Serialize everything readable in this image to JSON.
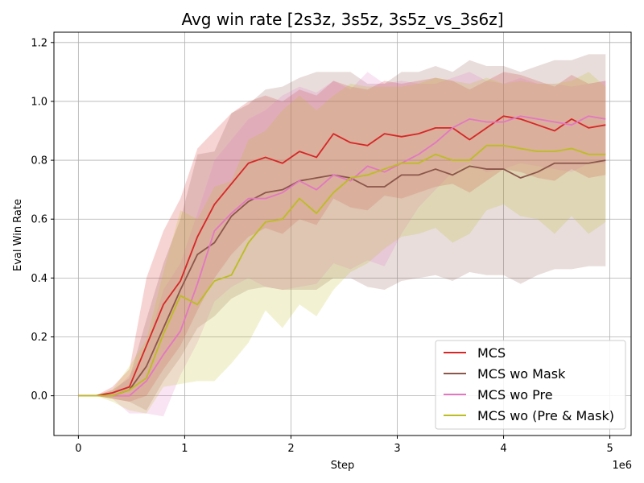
{
  "chart_data": {
    "type": "line",
    "title": "Avg win rate [2s3z, 3s5z, 3s5z_vs_3s6z]",
    "xlabel": "Step",
    "ylabel": "Eval Win Rate",
    "x_offset_label": "1e6",
    "xlim": [
      -0.23,
      5.2
    ],
    "ylim": [
      -0.135,
      1.235
    ],
    "xticks": [
      0,
      1,
      2,
      3,
      4,
      5
    ],
    "xtick_labels": [
      "0",
      "1",
      "2",
      "3",
      "4",
      "5"
    ],
    "yticks": [
      0.0,
      0.2,
      0.4,
      0.6,
      0.8,
      1.0,
      1.2
    ],
    "ytick_labels": [
      "0.0",
      "0.2",
      "0.4",
      "0.6",
      "0.8",
      "1.0",
      "1.2"
    ],
    "grid": true,
    "legend_position": "bottom-right",
    "x": [
      0,
      0.16,
      0.32,
      0.48,
      0.64,
      0.8,
      0.96,
      1.12,
      1.28,
      1.44,
      1.6,
      1.76,
      1.92,
      2.08,
      2.24,
      2.4,
      2.56,
      2.72,
      2.88,
      3.04,
      3.2,
      3.36,
      3.52,
      3.68,
      3.84,
      4.0,
      4.16,
      4.32,
      4.48,
      4.64,
      4.8,
      4.96
    ],
    "series": [
      {
        "name": "MCS",
        "color": "#d62728",
        "values": [
          0.0,
          0.0,
          0.01,
          0.03,
          0.17,
          0.31,
          0.39,
          0.54,
          0.65,
          0.72,
          0.79,
          0.81,
          0.79,
          0.83,
          0.81,
          0.89,
          0.86,
          0.85,
          0.89,
          0.88,
          0.89,
          0.91,
          0.91,
          0.87,
          0.91,
          0.95,
          0.94,
          0.92,
          0.9,
          0.94,
          0.91,
          0.92
        ],
        "lower": [
          0.0,
          0.0,
          -0.01,
          -0.02,
          0.0,
          0.09,
          0.17,
          0.29,
          0.4,
          0.48,
          0.54,
          0.57,
          0.55,
          0.6,
          0.58,
          0.67,
          0.64,
          0.63,
          0.68,
          0.67,
          0.69,
          0.71,
          0.72,
          0.69,
          0.73,
          0.77,
          0.76,
          0.74,
          0.73,
          0.77,
          0.74,
          0.75
        ],
        "upper": [
          0.0,
          0.0,
          0.03,
          0.09,
          0.4,
          0.56,
          0.67,
          0.84,
          0.9,
          0.96,
          1.0,
          1.02,
          1.0,
          1.04,
          1.02,
          1.07,
          1.05,
          1.04,
          1.07,
          1.06,
          1.07,
          1.08,
          1.07,
          1.04,
          1.07,
          1.1,
          1.09,
          1.07,
          1.05,
          1.09,
          1.06,
          1.07
        ]
      },
      {
        "name": "MCS wo Mask",
        "color": "#8c564b",
        "values": [
          0.0,
          0.0,
          0.0,
          0.02,
          0.1,
          0.23,
          0.36,
          0.48,
          0.52,
          0.61,
          0.66,
          0.69,
          0.7,
          0.73,
          0.74,
          0.75,
          0.74,
          0.71,
          0.71,
          0.75,
          0.75,
          0.77,
          0.75,
          0.78,
          0.77,
          0.77,
          0.74,
          0.76,
          0.79,
          0.79,
          0.79,
          0.8
        ],
        "lower": [
          0.0,
          0.0,
          -0.01,
          -0.02,
          -0.05,
          0.05,
          0.13,
          0.23,
          0.27,
          0.33,
          0.36,
          0.37,
          0.36,
          0.36,
          0.36,
          0.4,
          0.4,
          0.37,
          0.36,
          0.39,
          0.4,
          0.41,
          0.39,
          0.42,
          0.41,
          0.41,
          0.38,
          0.41,
          0.43,
          0.43,
          0.44,
          0.44
        ],
        "upper": [
          0.0,
          0.0,
          0.02,
          0.06,
          0.26,
          0.45,
          0.6,
          0.82,
          0.83,
          0.96,
          0.99,
          1.04,
          1.05,
          1.08,
          1.1,
          1.1,
          1.1,
          1.06,
          1.06,
          1.1,
          1.1,
          1.12,
          1.1,
          1.14,
          1.12,
          1.12,
          1.1,
          1.12,
          1.14,
          1.14,
          1.16,
          1.16
        ]
      },
      {
        "name": "MCS wo Pre",
        "color": "#e377c2",
        "values": [
          0.0,
          0.0,
          0.0,
          0.0,
          0.05,
          0.14,
          0.22,
          0.38,
          0.56,
          0.62,
          0.67,
          0.67,
          0.69,
          0.73,
          0.7,
          0.75,
          0.73,
          0.78,
          0.76,
          0.79,
          0.82,
          0.86,
          0.91,
          0.94,
          0.93,
          0.93,
          0.95,
          0.94,
          0.93,
          0.92,
          0.95,
          0.94
        ],
        "lower": [
          0.0,
          0.0,
          -0.01,
          -0.06,
          -0.06,
          -0.07,
          0.07,
          0.18,
          0.32,
          0.37,
          0.4,
          0.37,
          0.36,
          0.37,
          0.38,
          0.45,
          0.43,
          0.46,
          0.44,
          0.55,
          0.64,
          0.7,
          0.76,
          0.79,
          0.76,
          0.77,
          0.79,
          0.78,
          0.77,
          0.76,
          0.79,
          0.79
        ],
        "upper": [
          0.0,
          0.0,
          0.01,
          0.07,
          0.16,
          0.36,
          0.45,
          0.62,
          0.8,
          0.87,
          0.94,
          0.97,
          1.02,
          1.05,
          1.03,
          1.07,
          1.04,
          1.1,
          1.06,
          1.07,
          1.06,
          1.06,
          1.08,
          1.1,
          1.07,
          1.06,
          1.08,
          1.06,
          1.06,
          1.05,
          1.06,
          1.07
        ]
      },
      {
        "name": "MCS wo (Pre & Mask)",
        "color": "#bcbd22",
        "values": [
          0.0,
          0.0,
          0.0,
          0.02,
          0.06,
          0.21,
          0.34,
          0.31,
          0.39,
          0.41,
          0.52,
          0.59,
          0.6,
          0.67,
          0.62,
          0.69,
          0.74,
          0.75,
          0.77,
          0.79,
          0.79,
          0.82,
          0.8,
          0.8,
          0.85,
          0.85,
          0.84,
          0.83,
          0.83,
          0.84,
          0.82,
          0.82
        ],
        "lower": [
          0.0,
          0.0,
          -0.02,
          -0.05,
          -0.06,
          0.03,
          0.04,
          0.05,
          0.05,
          0.11,
          0.18,
          0.29,
          0.23,
          0.31,
          0.27,
          0.36,
          0.42,
          0.45,
          0.5,
          0.54,
          0.55,
          0.57,
          0.52,
          0.55,
          0.63,
          0.65,
          0.61,
          0.6,
          0.55,
          0.61,
          0.55,
          0.59
        ],
        "upper": [
          0.0,
          0.0,
          0.02,
          0.1,
          0.19,
          0.42,
          0.63,
          0.6,
          0.71,
          0.73,
          0.87,
          0.9,
          0.97,
          1.02,
          0.97,
          1.02,
          1.06,
          1.05,
          1.05,
          1.05,
          1.06,
          1.08,
          1.07,
          1.06,
          1.08,
          1.06,
          1.07,
          1.06,
          1.06,
          1.07,
          1.1,
          1.05
        ]
      }
    ]
  }
}
